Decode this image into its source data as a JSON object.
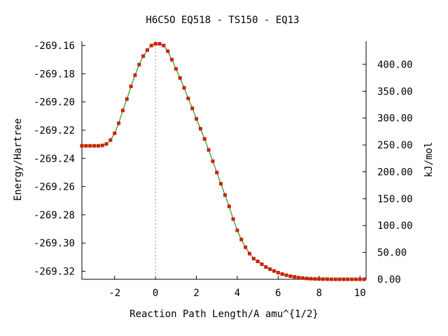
{
  "chart_data": {
    "type": "line",
    "title": "H6C5O    EQ518 - TS150 - EQ13",
    "xlabel": "Reaction Path Length/A amu^{1/2}",
    "ylabel": "Energy/Hartree",
    "y2label": "kJ/mol",
    "xlim": [
      -3.6,
      10.3
    ],
    "ylim": [
      -269.3257,
      -269.157
    ],
    "y2lim": [
      0.0,
      442.9
    ],
    "x_ticks": [
      "-2",
      "0",
      "2",
      "4",
      "6",
      "8",
      "10"
    ],
    "x_tick_values": [
      -2,
      0,
      2,
      4,
      6,
      8,
      10
    ],
    "y_ticks": [
      "-269.16",
      "-269.18",
      "-269.20",
      "-269.22",
      "-269.24",
      "-269.26",
      "-269.28",
      "-269.30",
      "-269.32"
    ],
    "y_tick_values": [
      -269.16,
      -269.18,
      -269.2,
      -269.22,
      -269.24,
      -269.26,
      -269.28,
      -269.3,
      -269.32
    ],
    "y2_ticks": [
      "0.00",
      "50.00",
      "100.00",
      "150.00",
      "200.00",
      "250.00",
      "300.00",
      "350.00",
      "400.00"
    ],
    "y2_tick_values": [
      0,
      50,
      100,
      150,
      200,
      250,
      300,
      350,
      400
    ],
    "ts_marker_x": 0,
    "grid": false,
    "legend": "none",
    "colors": {
      "line": "#008000",
      "marker": "#cc2200",
      "ts_line": "#888888",
      "axes": "#000000"
    },
    "series": [
      {
        "x": [
          -3.6,
          -3.4,
          -3.2,
          -3.0,
          -2.8,
          -2.6,
          -2.4,
          -2.2,
          -2.0,
          -1.8,
          -1.6,
          -1.4,
          -1.2,
          -1.0,
          -0.8,
          -0.6,
          -0.4,
          -0.2,
          0.0,
          0.2,
          0.4,
          0.6,
          0.8,
          1.0,
          1.2,
          1.4,
          1.6,
          1.8,
          2.0,
          2.2,
          2.4,
          2.6,
          2.8,
          3.0,
          3.2,
          3.4,
          3.6,
          3.8,
          4.0,
          4.2,
          4.4,
          4.6,
          4.8,
          5.0,
          5.2,
          5.4,
          5.6,
          5.8,
          6.0,
          6.2,
          6.4,
          6.6,
          6.8,
          7.0,
          7.2,
          7.4,
          7.6,
          7.8,
          8.0,
          8.2,
          8.4,
          8.6,
          8.8,
          9.0,
          9.2,
          9.4,
          9.6,
          9.8,
          10.0,
          10.2
        ],
        "y": [
          -269.2311,
          -269.2311,
          -269.2311,
          -269.2311,
          -269.2311,
          -269.2308,
          -269.2298,
          -269.227,
          -269.2222,
          -269.2151,
          -269.206,
          -269.198,
          -269.189,
          -269.181,
          -269.1735,
          -269.1675,
          -269.1632,
          -269.16,
          -269.1588,
          -269.1588,
          -269.16,
          -269.164,
          -269.17,
          -269.1765,
          -269.183,
          -269.19,
          -269.1975,
          -269.2045,
          -269.212,
          -269.219,
          -269.2262,
          -269.234,
          -269.242,
          -269.25,
          -269.258,
          -269.266,
          -269.274,
          -269.283,
          -269.291,
          -269.2975,
          -269.303,
          -269.3075,
          -269.311,
          -269.313,
          -269.315,
          -269.317,
          -269.3185,
          -269.3198,
          -269.321,
          -269.322,
          -269.3228,
          -269.3235,
          -269.324,
          -269.3245,
          -269.3248,
          -269.3251,
          -269.3253,
          -269.3254,
          -269.3255,
          -269.3256,
          -269.3256,
          -269.3257,
          -269.3257,
          -269.3257,
          -269.3257,
          -269.3257,
          -269.3257,
          -269.3257,
          -269.3257,
          -269.3257
        ]
      }
    ]
  }
}
